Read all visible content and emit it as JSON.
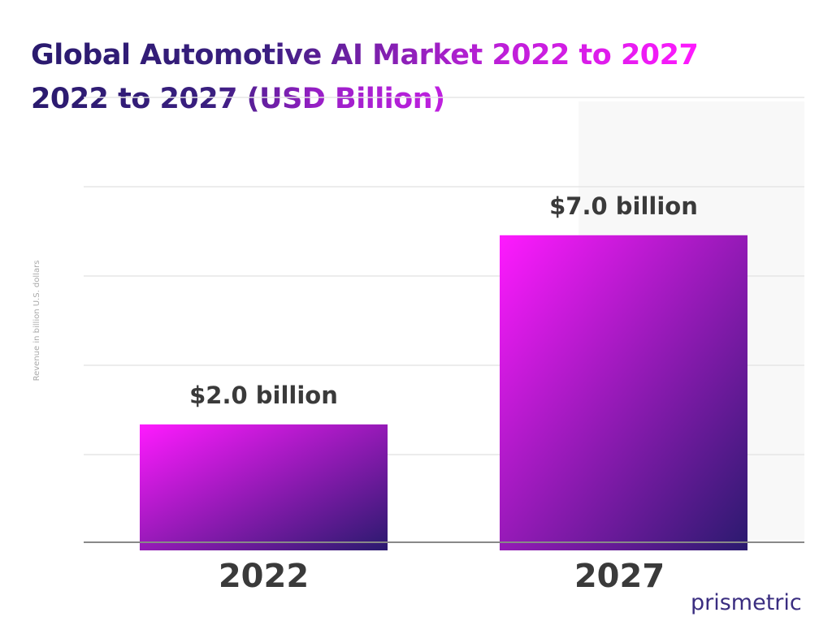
{
  "title": {
    "line1": "Global Automotive AI Market 2022 to 2027",
    "line2": "2022 to 2027 (USD Billion)"
  },
  "chart_data": {
    "type": "bar",
    "categories": [
      "2022",
      "2027"
    ],
    "values": [
      2.0,
      7.0
    ],
    "data_labels": [
      "$2.0 billion",
      "$7.0 billion"
    ],
    "ylabel": "Revenue in billion U.S. dollars",
    "xlabel": "",
    "grid": true,
    "colors": {
      "gradient_start": "#ff1aff",
      "gradient_end": "#2a1a6e"
    }
  },
  "logo": "prismetric"
}
